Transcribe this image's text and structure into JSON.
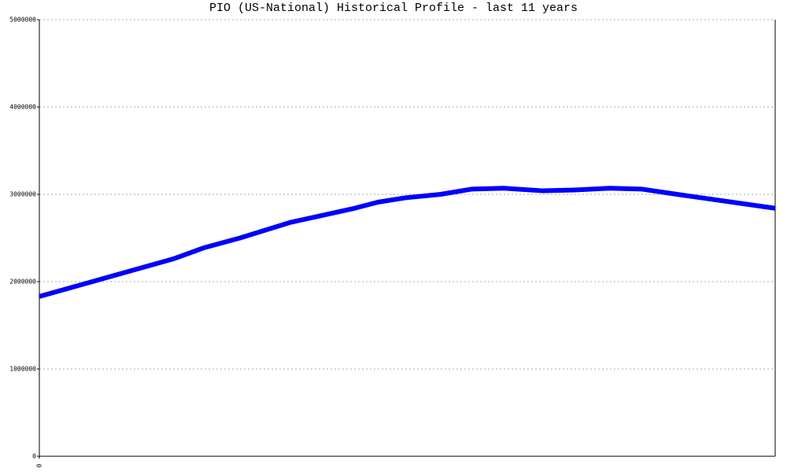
{
  "chart_data": {
    "type": "line",
    "title": "PIO (US-National) Historical Profile - last 11 years",
    "x": [
      0,
      2.0,
      2.47,
      3.0,
      3.76,
      4.71,
      5.06,
      5.47,
      6.0,
      6.47,
      6.94,
      7.53,
      8.0,
      8.53,
      9.0,
      9.53,
      11
    ],
    "series": [
      {
        "name": "PIO",
        "color": "#0000ff",
        "values": [
          1830000,
          2260000,
          2390000,
          2500000,
          2680000,
          2840000,
          2910000,
          2960000,
          3000000,
          3060000,
          3070000,
          3040000,
          3050000,
          3070000,
          3060000,
          3000000,
          2840000
        ]
      }
    ],
    "xlim": [
      0,
      11
    ],
    "xticks": [
      0
    ],
    "ylim": [
      0,
      5000000
    ],
    "yticks": [
      0,
      1000000,
      2000000,
      3000000,
      4000000,
      5000000
    ],
    "grid": true
  }
}
